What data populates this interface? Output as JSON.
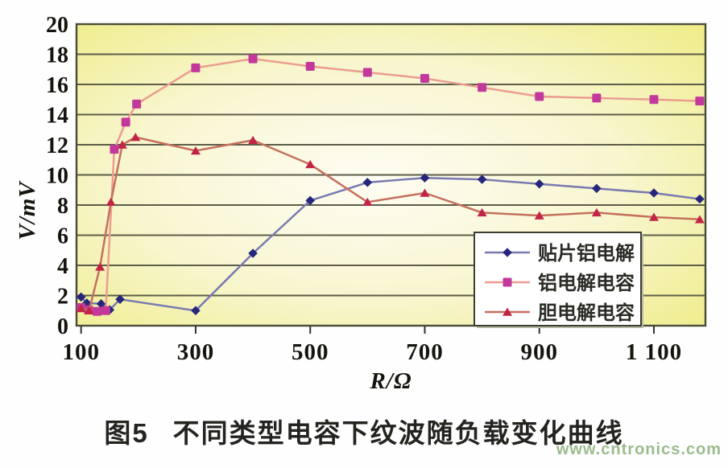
{
  "figure": {
    "caption_label": "图5",
    "caption_text": "不同类型电容下纹波随负载变化曲线",
    "watermark": "www.cntronics.com"
  },
  "chart_data": {
    "type": "line",
    "title": "",
    "xlabel": "R/Ω",
    "ylabel": "V/mV",
    "xlim": [
      92,
      1190
    ],
    "ylim": [
      0,
      20
    ],
    "grid": "horizontal",
    "gridline_color": "#5d5d49",
    "border_color": "#4c4c3a",
    "tick_color": "#33332a",
    "background": {
      "inner": "#fefdf3",
      "mid": "#f8f6cf",
      "outer": "#efec86"
    },
    "legend_position": "inside-right",
    "legend": {
      "border_color": "#3c3c30",
      "fill": "#ffffff"
    },
    "y_tick_values": [
      0,
      2,
      4,
      6,
      8,
      10,
      12,
      14,
      16,
      18,
      20
    ],
    "y_tick_labels": [
      "0",
      "2",
      "4",
      "6",
      "8",
      "10",
      "12",
      "14",
      "16",
      "18",
      "20"
    ],
    "x_tick_values": [
      100,
      300,
      500,
      700,
      900,
      1100
    ],
    "x_tick_labels": [
      "100",
      "300",
      "500",
      "700",
      "900",
      "1 100"
    ],
    "series": [
      {
        "name": "贴片铝电解",
        "marker_shape": "diamond",
        "line_color": "#7a7ab0",
        "marker_color": "#26267c",
        "points": [
          [
            100,
            1.9
          ],
          [
            110,
            1.5
          ],
          [
            135,
            1.45
          ],
          [
            150,
            1.05
          ],
          [
            168,
            1.75
          ],
          [
            300,
            1.0
          ],
          [
            400,
            4.8
          ],
          [
            500,
            8.3
          ],
          [
            600,
            9.5
          ],
          [
            700,
            9.8
          ],
          [
            800,
            9.7
          ],
          [
            900,
            9.4
          ],
          [
            1000,
            9.1
          ],
          [
            1100,
            8.8
          ],
          [
            1180,
            8.4
          ]
        ]
      },
      {
        "name": "铝电解电容",
        "marker_shape": "square",
        "line_color": "#eb9d90",
        "marker_color": "#c3399b",
        "points": [
          [
            100,
            1.2
          ],
          [
            113,
            1.05
          ],
          [
            128,
            0.95
          ],
          [
            143,
            1.0
          ],
          [
            158,
            11.7
          ],
          [
            178,
            13.5
          ],
          [
            197,
            14.7
          ],
          [
            300,
            17.1
          ],
          [
            400,
            17.7
          ],
          [
            500,
            17.2
          ],
          [
            600,
            16.8
          ],
          [
            700,
            16.4
          ],
          [
            800,
            15.8
          ],
          [
            900,
            15.2
          ],
          [
            1000,
            15.1
          ],
          [
            1100,
            15.0
          ],
          [
            1180,
            14.9
          ]
        ]
      },
      {
        "name": "胆电解电容",
        "marker_shape": "triangle",
        "line_color": "#c5705c",
        "marker_color": "#c22446",
        "points": [
          [
            100,
            1.15
          ],
          [
            114,
            1.0
          ],
          [
            133,
            3.9
          ],
          [
            152,
            8.2
          ],
          [
            172,
            12.0
          ],
          [
            195,
            12.5
          ],
          [
            300,
            11.6
          ],
          [
            400,
            12.3
          ],
          [
            500,
            10.7
          ],
          [
            600,
            8.2
          ],
          [
            700,
            8.8
          ],
          [
            800,
            7.5
          ],
          [
            900,
            7.3
          ],
          [
            1000,
            7.5
          ],
          [
            1100,
            7.2
          ],
          [
            1180,
            7.05
          ]
        ]
      }
    ]
  }
}
